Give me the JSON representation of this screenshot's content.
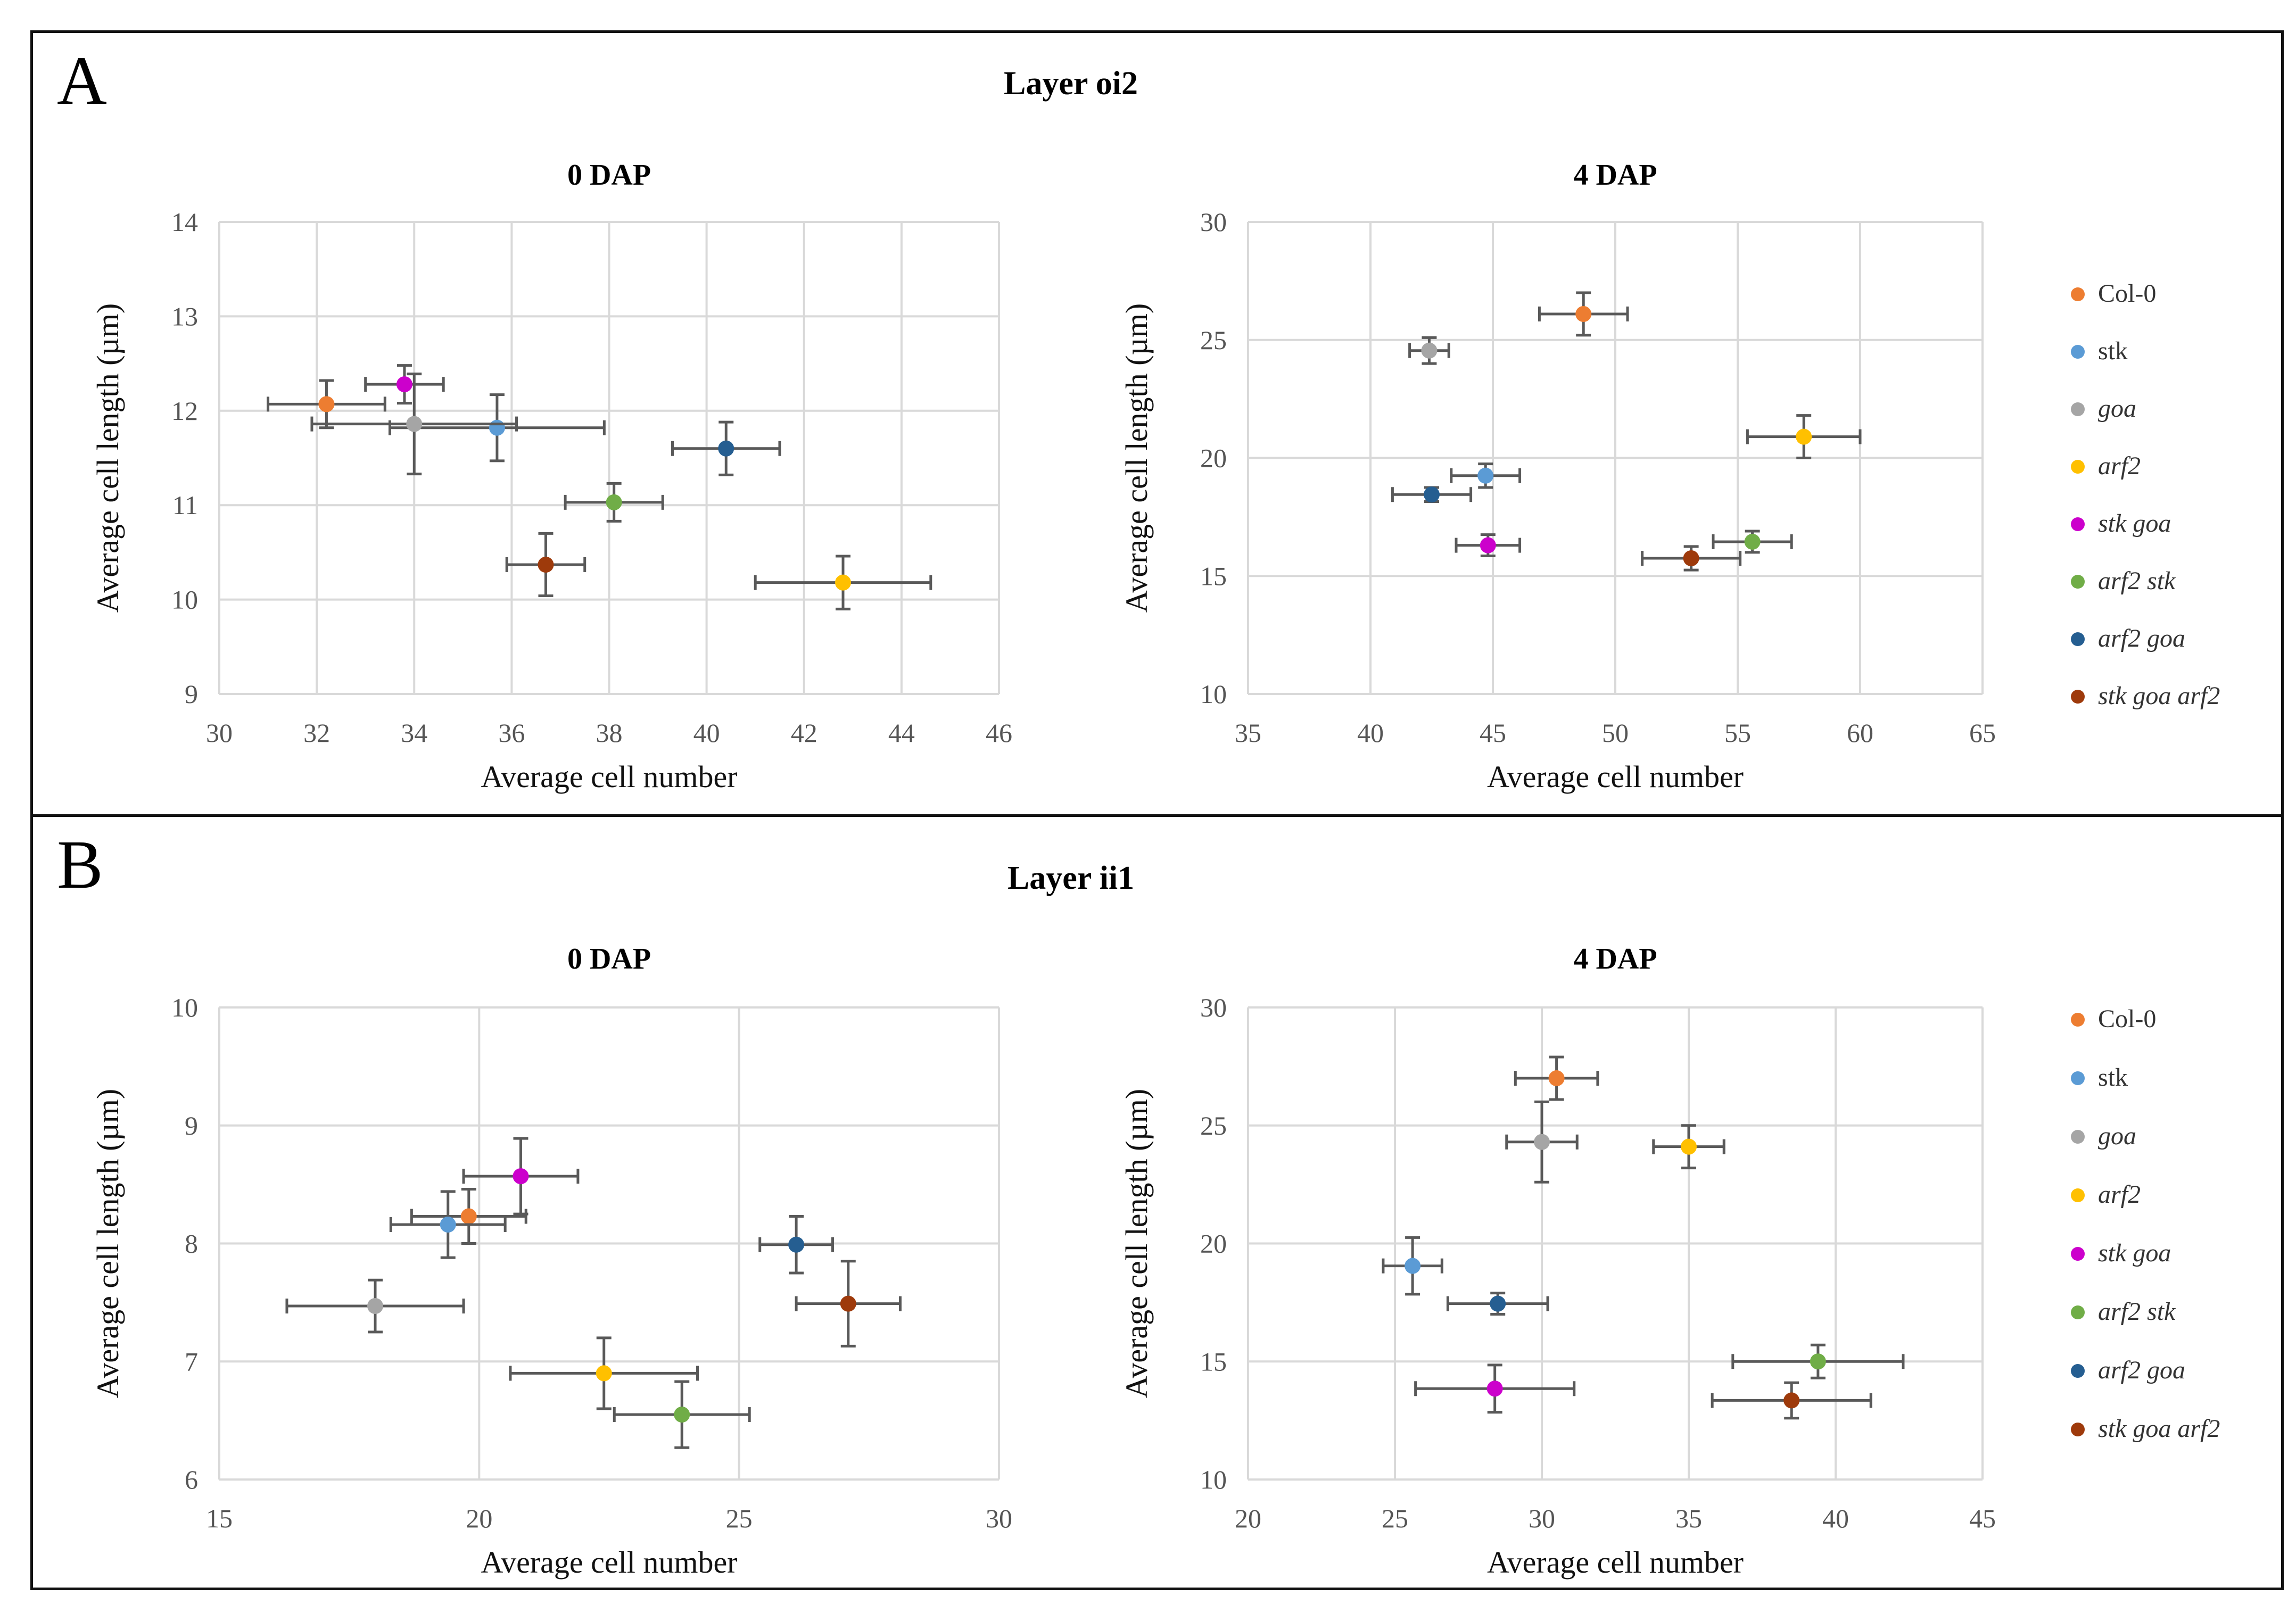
{
  "panels": [
    {
      "letter": "A",
      "title": "Layer oi2",
      "charts": [
        {
          "title": "0 DAP",
          "xlabel": "Average cell number",
          "ylabel": "Average cell length (µm)"
        },
        {
          "title": "4 DAP",
          "xlabel": "Average cell number",
          "ylabel": "Average cell length (µm)"
        }
      ]
    },
    {
      "letter": "B",
      "title": "Layer ii1",
      "charts": [
        {
          "title": "0 DAP",
          "xlabel": "Average cell number",
          "ylabel": "Average cell length (µm)"
        },
        {
          "title": "4 DAP",
          "xlabel": "Average cell number",
          "ylabel": "Average cell length (µm)"
        }
      ]
    }
  ],
  "legend": {
    "entries": [
      {
        "label": "Col-0",
        "color": "#ED7D31",
        "italic": false
      },
      {
        "label": "stk",
        "color": "#5B9BD5",
        "italic": false
      },
      {
        "label": "goa",
        "color": "#A5A5A5",
        "italic": true
      },
      {
        "label": "arf2",
        "color": "#FFC000",
        "italic": true
      },
      {
        "label": "stk goa",
        "color": "#CC00CC",
        "italic": true
      },
      {
        "label": "arf2 stk",
        "color": "#70AD47",
        "italic": true
      },
      {
        "label": "arf2 goa",
        "color": "#255E91",
        "italic": true
      },
      {
        "label": "stk goa arf2",
        "color": "#9E3A0B",
        "italic": true
      }
    ]
  },
  "chart_data": [
    {
      "type": "scatter",
      "panel": "A",
      "title": "0 DAP",
      "xlabel": "Average cell number",
      "ylabel": "Average cell length (µm)",
      "xlim": [
        30,
        46
      ],
      "ylim": [
        9,
        14
      ],
      "xticks": [
        30,
        32,
        34,
        36,
        38,
        40,
        42,
        44,
        46
      ],
      "yticks": [
        9,
        10,
        11,
        12,
        13,
        14
      ],
      "series": [
        {
          "name": "Col-0",
          "x": 32.2,
          "y": 12.07,
          "xerr": 1.2,
          "yerr": 0.25
        },
        {
          "name": "stk",
          "x": 35.7,
          "y": 11.82,
          "xerr": 2.2,
          "yerr": 0.35
        },
        {
          "name": "goa",
          "x": 34.0,
          "y": 11.86,
          "xerr": 2.1,
          "yerr": 0.53
        },
        {
          "name": "arf2",
          "x": 42.8,
          "y": 10.18,
          "xerr": 1.8,
          "yerr": 0.28
        },
        {
          "name": "stk goa",
          "x": 33.8,
          "y": 12.28,
          "xerr": 0.8,
          "yerr": 0.2
        },
        {
          "name": "arf2 stk",
          "x": 38.1,
          "y": 11.03,
          "xerr": 1.0,
          "yerr": 0.2
        },
        {
          "name": "arf2 goa",
          "x": 40.4,
          "y": 11.6,
          "xerr": 1.1,
          "yerr": 0.28
        },
        {
          "name": "stk goa arf2",
          "x": 36.7,
          "y": 10.37,
          "xerr": 0.8,
          "yerr": 0.33
        }
      ]
    },
    {
      "type": "scatter",
      "panel": "A",
      "title": "4 DAP",
      "xlabel": "Average cell number",
      "ylabel": "Average cell length (µm)",
      "xlim": [
        35,
        65
      ],
      "ylim": [
        10,
        30
      ],
      "xticks": [
        35,
        40,
        45,
        50,
        55,
        60,
        65
      ],
      "yticks": [
        10,
        15,
        20,
        25,
        30
      ],
      "series": [
        {
          "name": "Col-0",
          "x": 48.7,
          "y": 26.1,
          "xerr": 1.8,
          "yerr": 0.9
        },
        {
          "name": "stk",
          "x": 44.7,
          "y": 19.25,
          "xerr": 1.4,
          "yerr": 0.5
        },
        {
          "name": "goa",
          "x": 42.4,
          "y": 24.55,
          "xerr": 0.8,
          "yerr": 0.55
        },
        {
          "name": "arf2",
          "x": 57.7,
          "y": 20.9,
          "xerr": 2.3,
          "yerr": 0.9
        },
        {
          "name": "stk goa",
          "x": 44.8,
          "y": 16.3,
          "xerr": 1.3,
          "yerr": 0.45
        },
        {
          "name": "arf2 stk",
          "x": 55.6,
          "y": 16.45,
          "xerr": 1.6,
          "yerr": 0.45
        },
        {
          "name": "arf2 goa",
          "x": 42.5,
          "y": 18.45,
          "xerr": 1.6,
          "yerr": 0.3
        },
        {
          "name": "stk goa arf2",
          "x": 53.1,
          "y": 15.75,
          "xerr": 2.0,
          "yerr": 0.5
        }
      ]
    },
    {
      "type": "scatter",
      "panel": "B",
      "title": "0 DAP",
      "xlabel": "Average cell number",
      "ylabel": "Average cell length (µm)",
      "xlim": [
        15,
        30
      ],
      "ylim": [
        6,
        10
      ],
      "xticks": [
        15,
        20,
        25,
        30
      ],
      "yticks": [
        6,
        7,
        8,
        9,
        10
      ],
      "series": [
        {
          "name": "Col-0",
          "x": 19.8,
          "y": 8.23,
          "xerr": 1.1,
          "yerr": 0.23
        },
        {
          "name": "stk",
          "x": 19.4,
          "y": 8.16,
          "xerr": 1.1,
          "yerr": 0.28
        },
        {
          "name": "goa",
          "x": 18.0,
          "y": 7.47,
          "xerr": 1.7,
          "yerr": 0.22
        },
        {
          "name": "arf2",
          "x": 22.4,
          "y": 6.9,
          "xerr": 1.8,
          "yerr": 0.3
        },
        {
          "name": "stk goa",
          "x": 20.8,
          "y": 8.57,
          "xerr": 1.1,
          "yerr": 0.32
        },
        {
          "name": "arf2 stk",
          "x": 23.9,
          "y": 6.55,
          "xerr": 1.3,
          "yerr": 0.28
        },
        {
          "name": "arf2 goa",
          "x": 26.1,
          "y": 7.99,
          "xerr": 0.7,
          "yerr": 0.24
        },
        {
          "name": "stk goa arf2",
          "x": 27.1,
          "y": 7.49,
          "xerr": 1.0,
          "yerr": 0.36
        }
      ]
    },
    {
      "type": "scatter",
      "panel": "B",
      "title": "4 DAP",
      "xlabel": "Average cell number",
      "ylabel": "Average cell length (µm)",
      "xlim": [
        20,
        45
      ],
      "ylim": [
        10,
        30
      ],
      "xticks": [
        20,
        25,
        30,
        35,
        40,
        45
      ],
      "yticks": [
        10,
        15,
        20,
        25,
        30
      ],
      "series": [
        {
          "name": "Col-0",
          "x": 30.5,
          "y": 27.0,
          "xerr": 1.4,
          "yerr": 0.9
        },
        {
          "name": "stk",
          "x": 25.6,
          "y": 19.05,
          "xerr": 1.0,
          "yerr": 1.2
        },
        {
          "name": "goa",
          "x": 30.0,
          "y": 24.3,
          "xerr": 1.2,
          "yerr": 1.7
        },
        {
          "name": "arf2",
          "x": 35.0,
          "y": 24.1,
          "xerr": 1.2,
          "yerr": 0.9
        },
        {
          "name": "stk goa",
          "x": 28.4,
          "y": 13.85,
          "xerr": 2.7,
          "yerr": 1.0
        },
        {
          "name": "arf2 stk",
          "x": 39.4,
          "y": 15.0,
          "xerr": 2.9,
          "yerr": 0.7
        },
        {
          "name": "arf2 goa",
          "x": 28.5,
          "y": 17.45,
          "xerr": 1.7,
          "yerr": 0.45
        },
        {
          "name": "stk goa arf2",
          "x": 38.5,
          "y": 13.35,
          "xerr": 2.7,
          "yerr": 0.75
        }
      ]
    }
  ]
}
